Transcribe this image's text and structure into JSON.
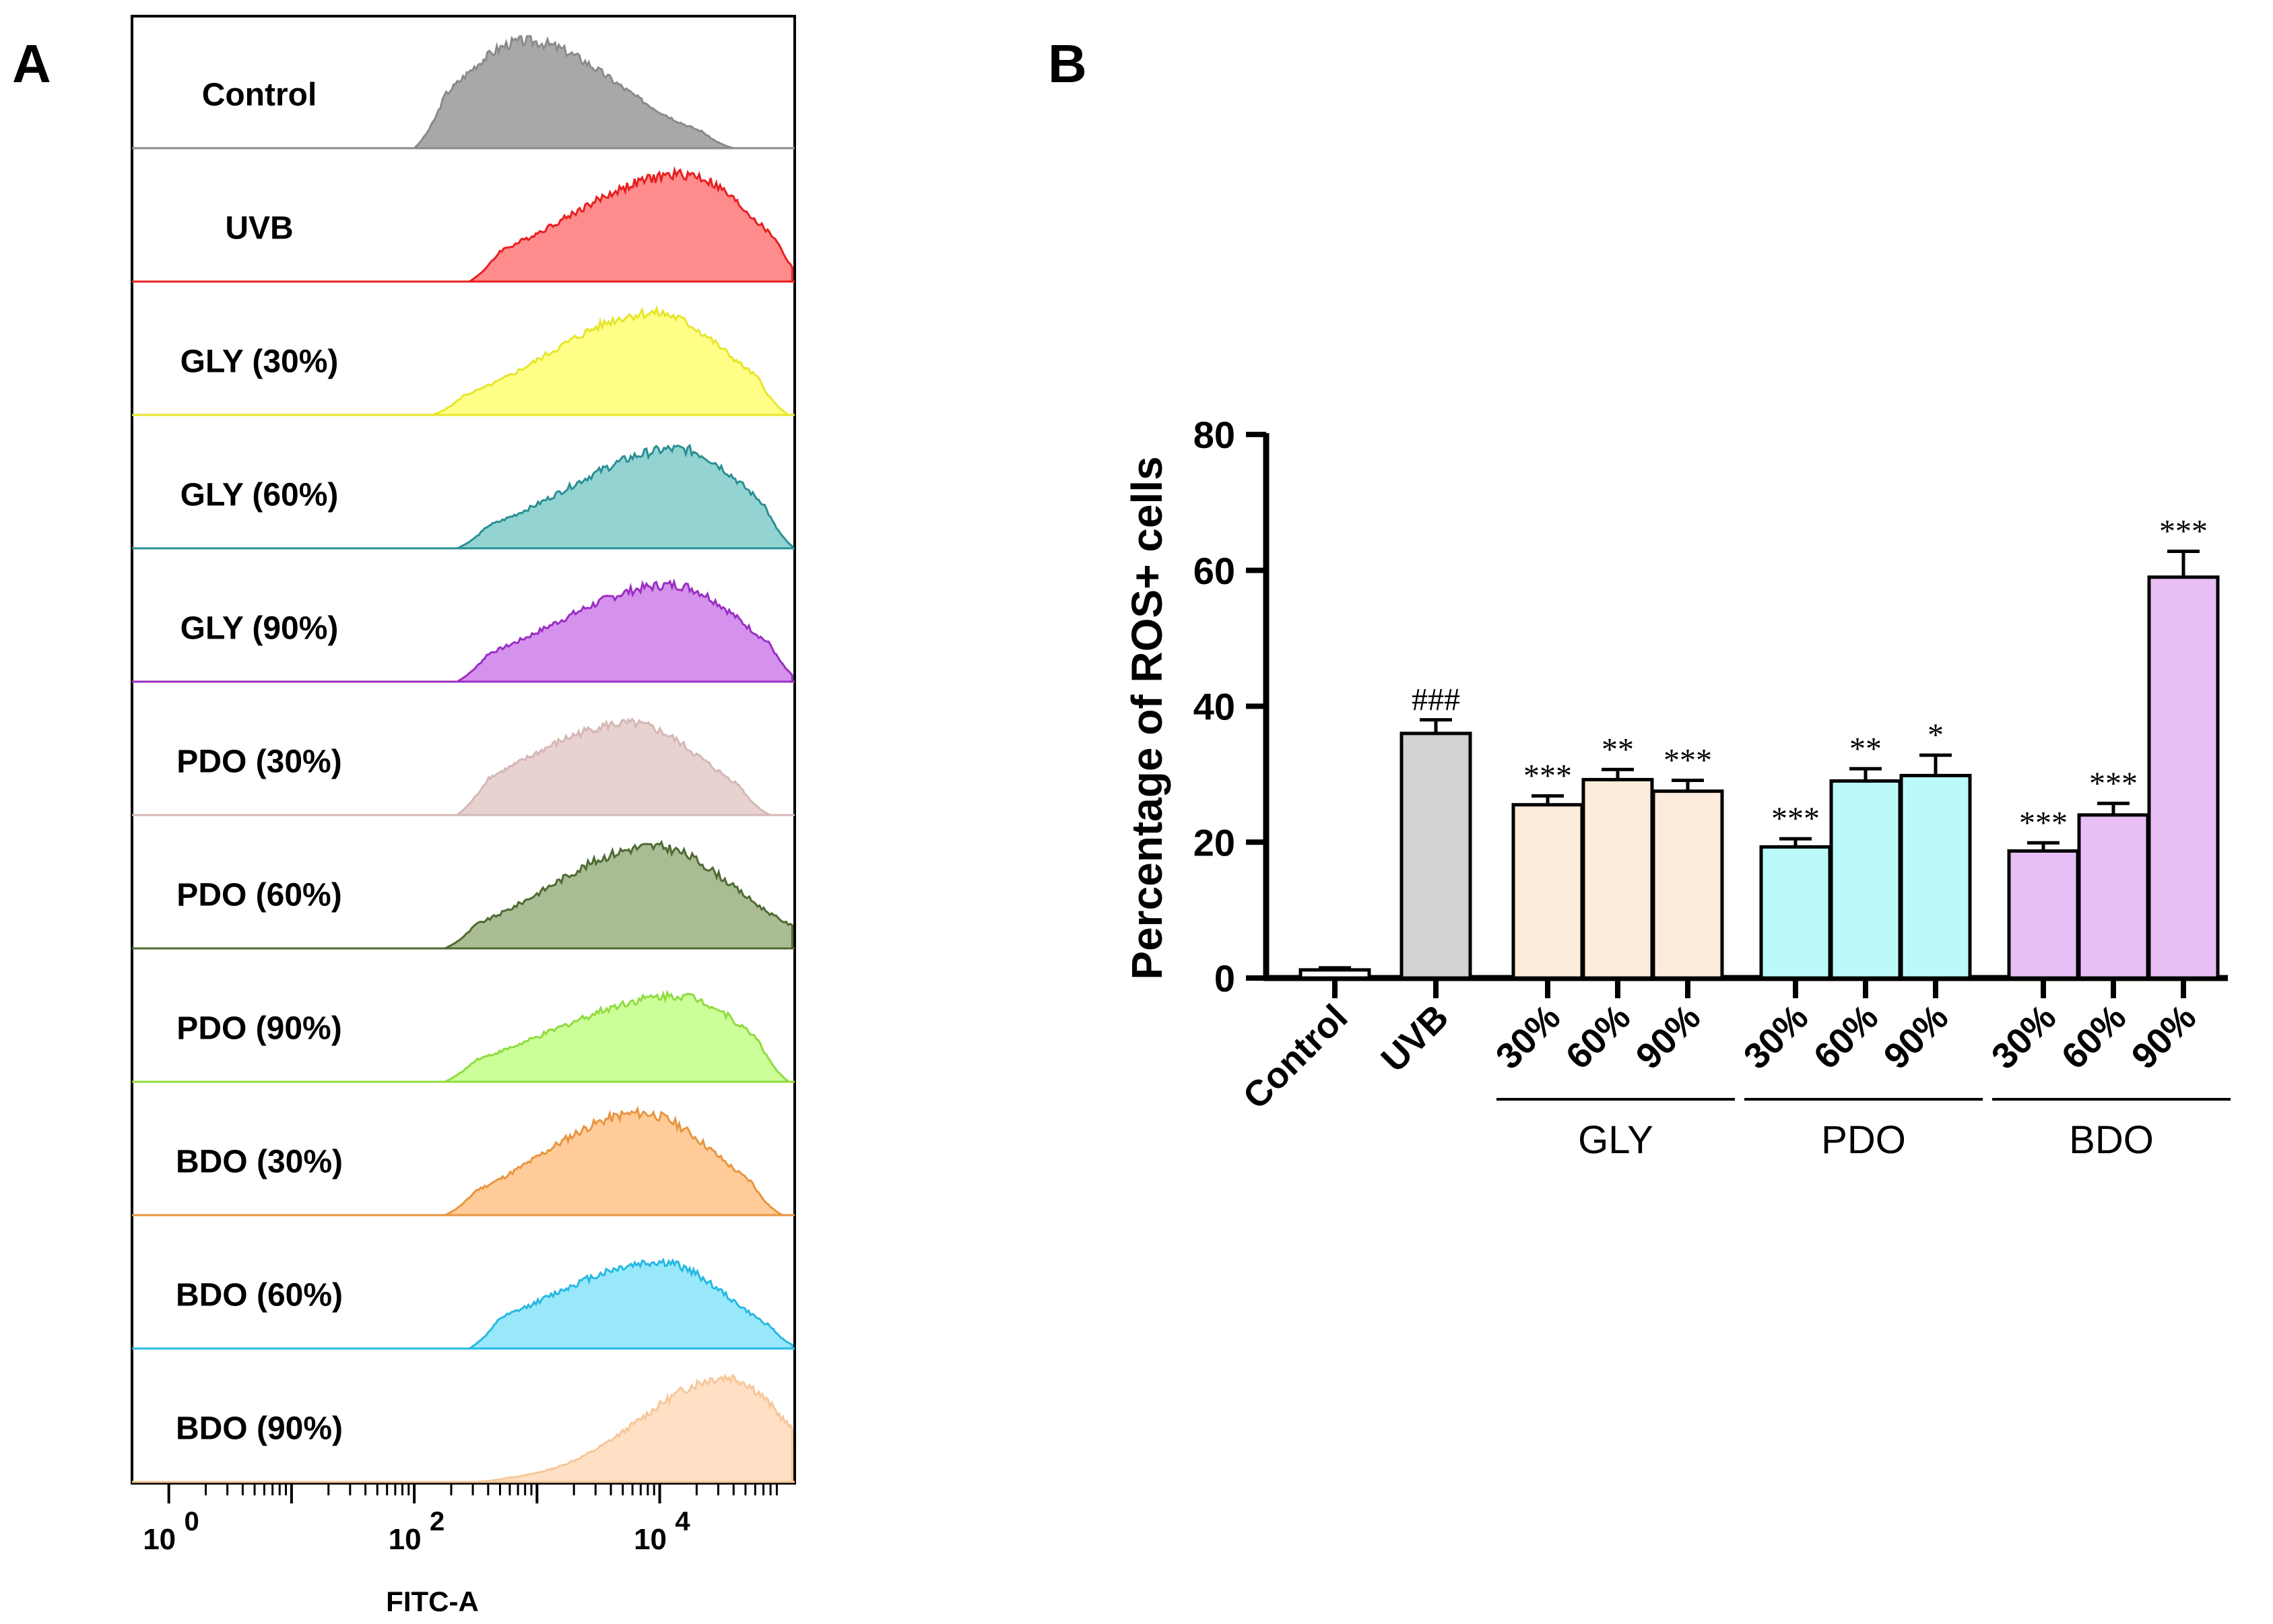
{
  "chart_data": [
    {
      "panel": "A",
      "type": "histogram",
      "xlabel": "FITC-A",
      "x_scale": "log",
      "x_tick_labels": [
        {
          "base": "10",
          "exp": "0"
        },
        {
          "base": "10",
          "exp": "2"
        },
        {
          "base": "10",
          "exp": "4"
        }
      ],
      "xlim_log10": [
        -0.3,
        5.1
      ],
      "samples": [
        {
          "label": "Control",
          "color": "#a8a8a8",
          "stroke": "#8a8a8a",
          "start": 2.0,
          "end": 4.6,
          "peak": 2.9,
          "left_sd": 0.55,
          "right_sd": 0.75,
          "height": 0.82,
          "opacity": 1.0
        },
        {
          "label": "UVB",
          "color": "#ff8c8c",
          "stroke": "#e82020",
          "start": 2.45,
          "end": 5.2,
          "peak": 4.2,
          "left_sd": 0.95,
          "right_sd": 0.55,
          "height": 0.82,
          "opacity": 1.0
        },
        {
          "label": "GLY (30%)",
          "color": "#ffff88",
          "stroke": "#e6e62a",
          "start": 2.15,
          "end": 5.05,
          "peak": 3.95,
          "left_sd": 0.85,
          "right_sd": 0.6,
          "height": 0.78,
          "opacity": 1.0
        },
        {
          "label": "GLY (60%)",
          "color": "#93d4d2",
          "stroke": "#2a8f94",
          "start": 2.35,
          "end": 5.1,
          "peak": 4.15,
          "left_sd": 0.9,
          "right_sd": 0.55,
          "height": 0.76,
          "opacity": 1.0
        },
        {
          "label": "GLY (90%)",
          "color": "#d592ec",
          "stroke": "#9a2fc2",
          "start": 2.35,
          "end": 5.15,
          "peak": 4.1,
          "left_sd": 0.95,
          "right_sd": 0.58,
          "height": 0.74,
          "opacity": 1.0
        },
        {
          "label": "PDO (30%)",
          "color": "#e8d2d0",
          "stroke": "#d4b8b6",
          "start": 2.35,
          "end": 4.9,
          "peak": 3.75,
          "left_sd": 0.85,
          "right_sd": 0.6,
          "height": 0.7,
          "opacity": 1.0
        },
        {
          "label": "PDO (60%)",
          "color": "#a9bc94",
          "stroke": "#4e6a33",
          "start": 2.25,
          "end": 5.35,
          "peak": 3.95,
          "left_sd": 0.85,
          "right_sd": 0.65,
          "height": 0.78,
          "opacity": 1.0
        },
        {
          "label": "PDO (90%)",
          "color": "#ccff99",
          "stroke": "#8fdc3e",
          "start": 2.25,
          "end": 5.05,
          "peak": 4.15,
          "left_sd": 1.0,
          "right_sd": 0.55,
          "height": 0.66,
          "opacity": 1.0
        },
        {
          "label": "BDO (30%)",
          "color": "#ffcc99",
          "stroke": "#e8953f",
          "start": 2.25,
          "end": 5.0,
          "peak": 3.85,
          "left_sd": 0.8,
          "right_sd": 0.6,
          "height": 0.78,
          "opacity": 1.0
        },
        {
          "label": "BDO (60%)",
          "color": "#99e8fa",
          "stroke": "#26b9e3",
          "start": 2.45,
          "end": 5.15,
          "peak": 4.0,
          "left_sd": 0.9,
          "right_sd": 0.55,
          "height": 0.66,
          "opacity": 1.0
        },
        {
          "label": "BDO (90%)",
          "color": "#ffe0c4",
          "stroke": "#f6c79a",
          "start": 2.5,
          "end": 5.35,
          "peak": 4.55,
          "left_sd": 0.7,
          "right_sd": 0.45,
          "height": 0.8,
          "opacity": 1.0
        }
      ]
    },
    {
      "panel": "B",
      "type": "bar",
      "ylabel": "Percentage of ROS+ cells",
      "ylim": [
        0,
        80
      ],
      "yticks": [
        0,
        20,
        40,
        60,
        80
      ],
      "y_tick_labels": [
        "0",
        "20",
        "40",
        "60",
        "80"
      ],
      "categories": [
        "Control",
        "UVB",
        "30%",
        "60%",
        "90%",
        "30%",
        "60%",
        "90%",
        "30%",
        "60%",
        "90%"
      ],
      "values": [
        1.2,
        36.0,
        25.5,
        29.2,
        27.5,
        19.3,
        29.0,
        29.8,
        18.7,
        24.0,
        59.0
      ],
      "errors": [
        0.3,
        2.0,
        1.3,
        1.5,
        1.6,
        1.2,
        1.8,
        3.0,
        1.2,
        1.7,
        3.8
      ],
      "colors": [
        "#ffffff",
        "#d3d3d3",
        "#fdebdb",
        "#fdebdb",
        "#fdebdb",
        "#bbfafa",
        "#bbfafa",
        "#bbfafa",
        "#e8bff5",
        "#e8bff5",
        "#e8bff5"
      ],
      "significance": [
        "",
        "###",
        "***",
        "**",
        "***",
        "***",
        "**",
        "*",
        "***",
        "***",
        "***"
      ],
      "groups": [
        {
          "label": "GLY",
          "members": [
            2,
            3,
            4
          ]
        },
        {
          "label": "PDO",
          "members": [
            5,
            6,
            7
          ]
        },
        {
          "label": "BDO",
          "members": [
            8,
            9,
            10
          ]
        }
      ]
    }
  ],
  "panel_labels": {
    "a": "A",
    "b": "B"
  }
}
